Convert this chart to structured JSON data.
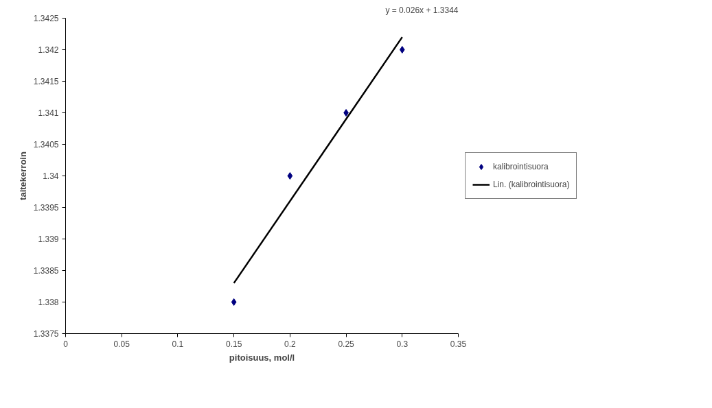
{
  "chart_data": {
    "type": "scatter",
    "xlabel": "pitoisuus, mol/l",
    "ylabel": "taitekerroin",
    "annotations": [
      "y = 0.026x + 1.3344"
    ],
    "xlim": [
      0,
      0.35
    ],
    "xticks": [
      0,
      0.05,
      0.1,
      0.15,
      0.2,
      0.25,
      0.3,
      0.35
    ],
    "ylim": [
      1.3375,
      1.3425
    ],
    "yticks": [
      1.3375,
      1.338,
      1.3385,
      1.339,
      1.3395,
      1.34,
      1.3405,
      1.341,
      1.3415,
      1.342,
      1.3425
    ],
    "grid": false,
    "legend": "right",
    "series": [
      {
        "name": "kalibrointisuora",
        "color": "#000080",
        "marker": "diamond",
        "x": [
          0.15,
          0.2,
          0.25,
          0.3
        ],
        "values": [
          1.338,
          1.34,
          1.341,
          1.342
        ]
      },
      {
        "name": "Lin. (kalibrointisuora)",
        "type": "line",
        "marker": "none",
        "color": "#000000",
        "x": [
          0.15,
          0.3
        ],
        "values": [
          1.3383,
          1.3422
        ]
      }
    ]
  }
}
